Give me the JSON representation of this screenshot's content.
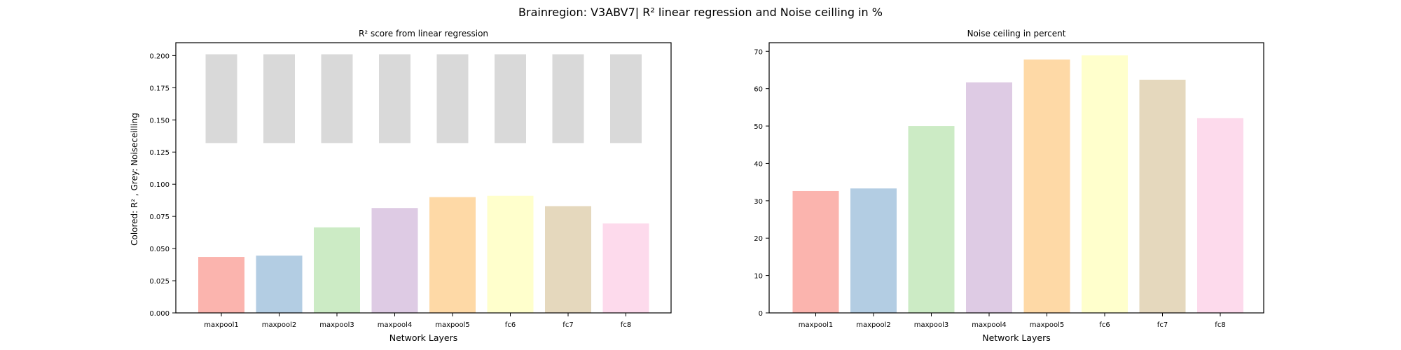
{
  "figure": {
    "suptitle": "Brainregion: V3ABV7| R² linear regression and Noise ceilling in %"
  },
  "chart_data": [
    {
      "type": "bar",
      "title": "R² score from linear regression",
      "xlabel": "Network Layers",
      "ylabel": "Colored: R² , Grey: Noiseceilling",
      "categories": [
        "maxpool1",
        "maxpool2",
        "maxpool3",
        "maxpool4",
        "maxpool5",
        "fc6",
        "fc7",
        "fc8"
      ],
      "series": [
        {
          "values": [
            0.0435,
            0.0445,
            0.0665,
            0.0815,
            0.09,
            0.091,
            0.083,
            0.0695
          ],
          "colors": [
            "#fbb4ae",
            "#b3cde3",
            "#ccebc5",
            "#decbe4",
            "#fed9a6",
            "#ffffcc",
            "#e5d8bd",
            "#fddaec"
          ]
        },
        {
          "range": [
            0.132,
            0.201
          ],
          "color": "#d9d9d9",
          "values": [
            0.201,
            0.201,
            0.201,
            0.201,
            0.201,
            0.201,
            0.201,
            0.201
          ]
        }
      ],
      "ylim": [
        0,
        0.21
      ],
      "yticks": [
        0.0,
        0.025,
        0.05,
        0.075,
        0.1,
        0.125,
        0.15,
        0.175,
        0.2
      ],
      "ytick_labels": [
        "0.000",
        "0.025",
        "0.050",
        "0.075",
        "0.100",
        "0.125",
        "0.150",
        "0.175",
        "0.200"
      ],
      "grid": false,
      "legend": "none"
    },
    {
      "type": "bar",
      "title": "Noise ceiling in percent",
      "xlabel": "Network Layers",
      "ylabel": "",
      "categories": [
        "maxpool1",
        "maxpool2",
        "maxpool3",
        "maxpool4",
        "maxpool5",
        "fc6",
        "fc7",
        "fc8"
      ],
      "series": [
        {
          "values": [
            32.6,
            33.3,
            50.0,
            61.7,
            67.8,
            68.9,
            62.4,
            52.1
          ],
          "colors": [
            "#fbb4ae",
            "#b3cde3",
            "#ccebc5",
            "#decbe4",
            "#fed9a6",
            "#ffffcc",
            "#e5d8bd",
            "#fddaec"
          ]
        }
      ],
      "ylim": [
        0,
        72.3
      ],
      "yticks": [
        0,
        10,
        20,
        30,
        40,
        50,
        60,
        70
      ],
      "ytick_labels": [
        "0",
        "10",
        "20",
        "30",
        "40",
        "50",
        "60",
        "70"
      ],
      "grid": false,
      "legend": "none"
    }
  ]
}
